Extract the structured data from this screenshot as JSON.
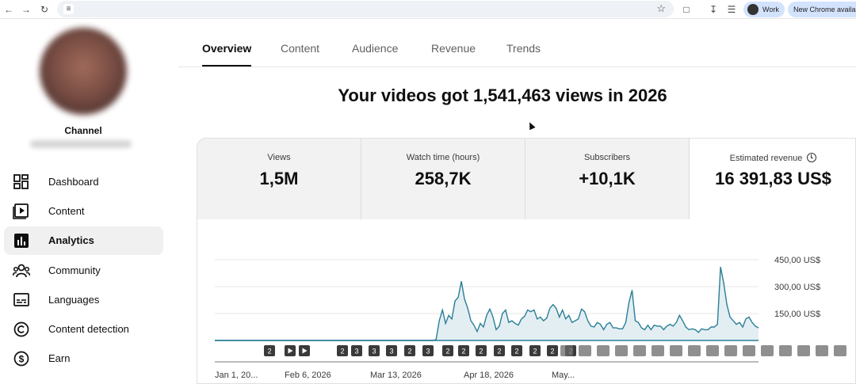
{
  "browser": {
    "profile_label": "Work",
    "update_label": "New Chrome available"
  },
  "sidebar": {
    "channel_label": "Channel",
    "items": [
      {
        "label": "Dashboard",
        "icon": "dashboard-icon",
        "active": false
      },
      {
        "label": "Content",
        "icon": "content-icon",
        "active": false
      },
      {
        "label": "Analytics",
        "icon": "analytics-icon",
        "active": true
      },
      {
        "label": "Community",
        "icon": "community-icon",
        "active": false
      },
      {
        "label": "Languages",
        "icon": "languages-icon",
        "active": false
      },
      {
        "label": "Content detection",
        "icon": "copyright-icon",
        "active": false
      },
      {
        "label": "Earn",
        "icon": "dollar-icon",
        "active": false
      }
    ]
  },
  "tabs": [
    {
      "label": "Overview",
      "active": true
    },
    {
      "label": "Content",
      "active": false
    },
    {
      "label": "Audience",
      "active": false
    },
    {
      "label": "Revenue",
      "active": false
    },
    {
      "label": "Trends",
      "active": false
    }
  ],
  "headline": "Your videos got 1,541,463 views in 2026",
  "metrics": [
    {
      "label": "Views",
      "value": "1,5M"
    },
    {
      "label": "Watch time (hours)",
      "value": "258,7K"
    },
    {
      "label": "Subscribers",
      "value": "+10,1K"
    },
    {
      "label": "Estimated revenue",
      "value": "16 391,83 US$",
      "active": true
    }
  ],
  "chart_data": {
    "type": "area",
    "y_ticks": [
      "450,00 US$",
      "300,00 US$",
      "150,00 US$"
    ],
    "x_ticks": [
      "Jan 1, 20...",
      "Feb 6, 2026",
      "Mar 13, 2026",
      "Apr 18, 2026",
      "May..."
    ],
    "ylim": [
      0,
      450
    ],
    "markers": [
      "2",
      "play",
      "play",
      "2",
      "3",
      "3",
      "3",
      "2",
      "3",
      "2",
      "2",
      "2",
      "2",
      "2",
      "2",
      "2",
      "2"
    ],
    "series": [
      {
        "values": [
          0,
          0,
          0,
          0,
          0,
          0,
          0,
          0,
          0,
          0,
          0,
          0,
          0,
          0,
          0,
          0,
          0,
          0,
          0,
          0,
          0,
          0,
          0,
          0,
          0,
          0,
          0,
          0,
          0,
          0,
          0,
          0,
          0,
          0,
          0,
          0,
          0,
          0,
          0,
          0,
          0,
          0,
          0,
          0,
          0,
          0,
          0,
          0,
          0,
          0,
          0,
          0,
          0,
          0,
          0,
          0,
          0,
          0,
          0,
          0,
          0,
          0,
          0,
          0,
          0,
          0,
          0,
          0,
          0,
          0,
          5,
          110,
          170,
          95,
          140,
          120,
          220,
          240,
          330,
          230,
          180,
          110,
          85,
          50,
          95,
          75,
          140,
          175,
          130,
          60,
          80,
          150,
          170,
          100,
          110,
          95,
          85,
          120,
          135,
          170,
          160,
          170,
          120,
          130,
          110,
          125,
          180,
          200,
          180,
          130,
          170,
          120,
          140,
          100,
          110,
          120,
          175,
          160,
          110,
          80,
          75,
          100,
          90,
          60,
          90,
          100,
          70,
          70,
          65,
          65,
          100,
          210,
          280,
          110,
          100,
          70,
          60,
          85,
          60,
          85,
          80,
          80,
          60,
          80,
          90,
          80,
          100,
          140,
          110,
          75,
          60,
          65,
          60,
          45,
          65,
          60,
          60,
          75,
          75,
          90,
          410,
          320,
          200,
          130,
          110,
          90,
          100,
          75,
          120,
          130,
          100,
          80,
          70
        ]
      }
    ]
  }
}
